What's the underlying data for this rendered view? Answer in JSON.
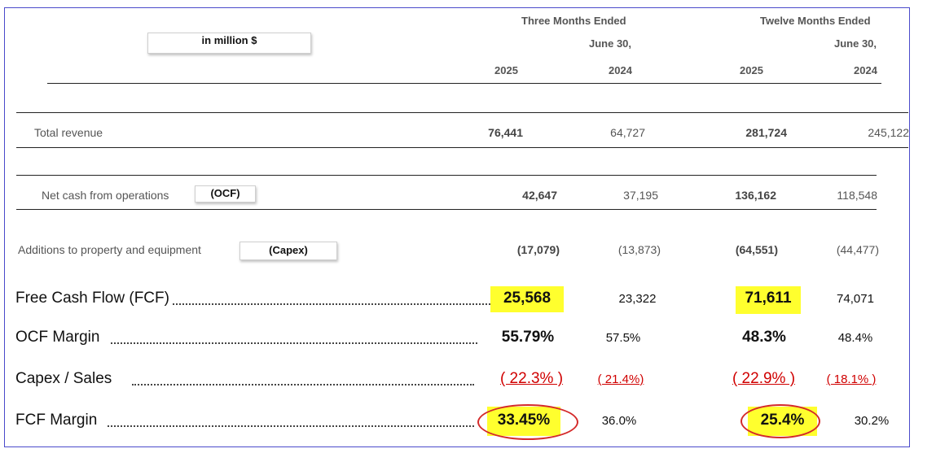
{
  "header": {
    "unit_label": "in million $",
    "three_months": "Three Months Ended",
    "twelve_months": "Twelve Months Ended",
    "period_end_1": "June 30,",
    "period_end_2": "June 30,",
    "years": [
      "2025",
      "2024",
      "2025",
      "2024"
    ]
  },
  "rows": {
    "revenue": {
      "label": "Total revenue",
      "values": [
        "76,441",
        "64,727",
        "281,724",
        "245,122"
      ]
    },
    "ocf": {
      "label": "Net cash from operations",
      "tag": "(OCF)",
      "values": [
        "42,647",
        "37,195",
        "136,162",
        "118,548"
      ]
    },
    "capex": {
      "label": "Additions to property and equipment",
      "tag": "(Capex)",
      "values": [
        "(17,079)",
        "(13,873)",
        "(64,551)",
        "(44,477)"
      ]
    }
  },
  "summary": {
    "fcf": {
      "label": "Free Cash Flow (FCF)",
      "values": [
        "25,568",
        "23,322",
        "71,611",
        "74,071"
      ]
    },
    "ocf_margin": {
      "label": "OCF Margin",
      "values": [
        "55.79%",
        "57.5%",
        "48.3%",
        "48.4%"
      ]
    },
    "capex_sales": {
      "label": "Capex / Sales",
      "values": [
        "( 22.3% )",
        "( 21.4%)",
        "( 22.9% )",
        "( 18.1% )"
      ]
    },
    "fcf_margin": {
      "label": "FCF Margin",
      "values": [
        "33.45%",
        "36.0%",
        "25.4%",
        "30.2%"
      ]
    }
  },
  "colors": {
    "highlight": "#ffff2e",
    "negative_red": "#d00000",
    "circle": "#d42a2a",
    "frame": "#4a4acb"
  }
}
